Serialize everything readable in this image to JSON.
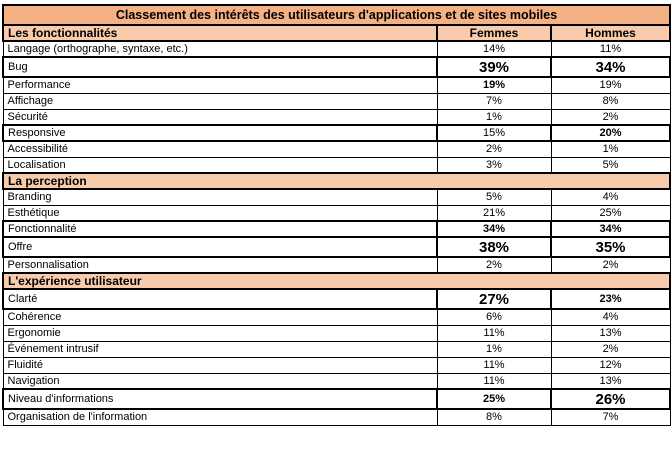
{
  "title": "Classement des intérêts des utilisateurs d'applications et de sites mobiles",
  "header": {
    "label": "Les fonctionnalités",
    "femmes": "Femmes",
    "hommes": "Hommes"
  },
  "colors": {
    "title_bg": "#F4B183",
    "section_bg": "#F8CBAD",
    "border": "#000000",
    "text": "#000000"
  },
  "sections": [
    {
      "header": null,
      "rows": [
        {
          "label": "Langage (orthographe, syntaxe, etc.)",
          "femmes": "14%",
          "hommes": "11%",
          "f_style": "n",
          "h_style": "n",
          "box": false,
          "tall": false
        },
        {
          "label": "Bug",
          "femmes": "39%",
          "hommes": "34%",
          "f_style": "B",
          "h_style": "B",
          "box": true,
          "tall": true
        },
        {
          "label": "Performance",
          "femmes": "19%",
          "hommes": "19%",
          "f_style": "b",
          "h_style": "n",
          "box": false,
          "tall": false
        },
        {
          "label": "Affichage",
          "femmes": "7%",
          "hommes": "8%",
          "f_style": "n",
          "h_style": "n",
          "box": false,
          "tall": false
        },
        {
          "label": "Sécurité",
          "femmes": "1%",
          "hommes": "2%",
          "f_style": "n",
          "h_style": "n",
          "box": false,
          "tall": false
        },
        {
          "label": "Responsive",
          "femmes": "15%",
          "hommes": "20%",
          "f_style": "n",
          "h_style": "b",
          "box": true,
          "tall": false
        },
        {
          "label": "Accessibilité",
          "femmes": "2%",
          "hommes": "1%",
          "f_style": "n",
          "h_style": "n",
          "box": false,
          "tall": false
        },
        {
          "label": "Localisation",
          "femmes": "3%",
          "hommes": "5%",
          "f_style": "n",
          "h_style": "n",
          "box": false,
          "tall": false
        }
      ]
    },
    {
      "header": "La perception",
      "rows": [
        {
          "label": "Branding",
          "femmes": "5%",
          "hommes": "4%",
          "f_style": "n",
          "h_style": "n",
          "box": false,
          "tall": false
        },
        {
          "label": "Esthétique",
          "femmes": "21%",
          "hommes": "25%",
          "f_style": "n",
          "h_style": "n",
          "box": false,
          "tall": false
        },
        {
          "label": "Fonctionnalité",
          "femmes": "34%",
          "hommes": "34%",
          "f_style": "b",
          "h_style": "b",
          "box": true,
          "tall": false
        },
        {
          "label": "Offre",
          "femmes": "38%",
          "hommes": "35%",
          "f_style": "B",
          "h_style": "B",
          "box": true,
          "tall": true
        },
        {
          "label": "Personnalisation",
          "femmes": "2%",
          "hommes": "2%",
          "f_style": "n",
          "h_style": "n",
          "box": false,
          "tall": false
        }
      ]
    },
    {
      "header": "L'expérience utilisateur",
      "rows": [
        {
          "label": "Clarté",
          "femmes": "27%",
          "hommes": "23%",
          "f_style": "B",
          "h_style": "b",
          "box": true,
          "tall": true
        },
        {
          "label": "Cohérence",
          "femmes": "6%",
          "hommes": "4%",
          "f_style": "n",
          "h_style": "n",
          "box": false,
          "tall": false
        },
        {
          "label": "Ergonomie",
          "femmes": "11%",
          "hommes": "13%",
          "f_style": "n",
          "h_style": "n",
          "box": false,
          "tall": false
        },
        {
          "label": "Événement intrusif",
          "femmes": "1%",
          "hommes": "2%",
          "f_style": "n",
          "h_style": "n",
          "box": false,
          "tall": false
        },
        {
          "label": "Fluidité",
          "femmes": "11%",
          "hommes": "12%",
          "f_style": "n",
          "h_style": "n",
          "box": false,
          "tall": false
        },
        {
          "label": "Navigation",
          "femmes": "11%",
          "hommes": "13%",
          "f_style": "n",
          "h_style": "n",
          "box": false,
          "tall": false
        },
        {
          "label": "Niveau d'informations",
          "femmes": "25%",
          "hommes": "26%",
          "f_style": "b",
          "h_style": "B",
          "box": true,
          "tall": true
        },
        {
          "label": "Organisation de l'information",
          "femmes": "8%",
          "hommes": "7%",
          "f_style": "n",
          "h_style": "n",
          "box": false,
          "tall": false
        }
      ]
    }
  ]
}
